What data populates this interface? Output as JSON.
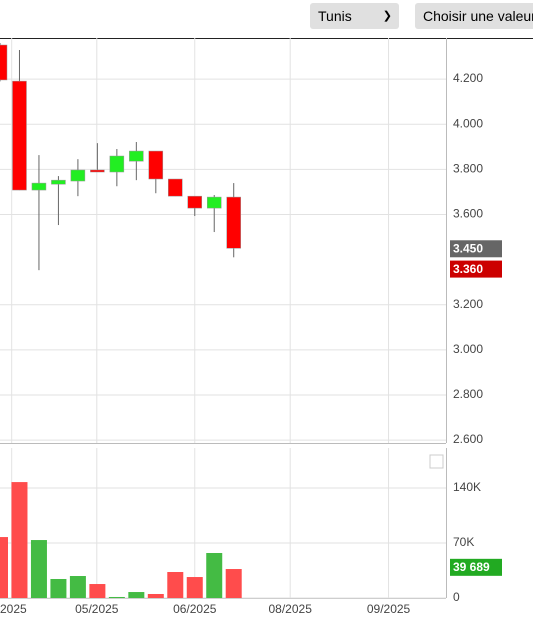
{
  "controls": {
    "exchange": "Tunis",
    "button": "Choisir une valeur"
  },
  "chart_data": [
    {
      "type": "candlestick",
      "x": [
        0,
        1,
        2,
        3,
        4,
        5,
        6,
        7,
        8,
        9,
        10,
        11,
        12
      ],
      "open": [
        4.351,
        4.191,
        3.708,
        3.734,
        3.748,
        3.797,
        3.788,
        3.836,
        3.881,
        3.757,
        3.681,
        3.628,
        3.677
      ],
      "high": [
        4.36,
        4.329,
        3.863,
        3.77,
        3.845,
        3.916,
        3.89,
        3.921,
        3.881,
        3.757,
        3.681,
        3.686,
        3.739
      ],
      "low": [
        4.19,
        3.708,
        3.353,
        3.553,
        3.681,
        3.788,
        3.725,
        3.752,
        3.694,
        3.681,
        3.593,
        3.522,
        3.41
      ],
      "close": [
        4.196,
        3.708,
        3.739,
        3.752,
        3.797,
        3.788,
        3.859,
        3.881,
        3.757,
        3.681,
        3.628,
        3.677,
        3.45
      ],
      "up_color": "#22ee22",
      "down_color": "#ff0000",
      "xlim": [
        0,
        22.9
      ],
      "ylim": [
        2.587,
        4.382
      ],
      "yticks": [
        {
          "value": 2.6,
          "label": "2.600"
        },
        {
          "value": 2.8,
          "label": "2.800"
        },
        {
          "value": 3.0,
          "label": "3.000"
        },
        {
          "value": 3.2,
          "label": "3.200"
        },
        {
          "value": 3.6,
          "label": "3.600"
        },
        {
          "value": 3.8,
          "label": "3.800"
        },
        {
          "value": 4.0,
          "label": "4.000"
        },
        {
          "value": 4.2,
          "label": "4.200"
        }
      ],
      "xticks": [
        {
          "value": 0.6,
          "label": "/2025"
        },
        {
          "value": 4.97,
          "label": "05/2025"
        },
        {
          "value": 10,
          "label": "06/2025"
        },
        {
          "value": 14.9,
          "label": "08/2025"
        },
        {
          "value": 19.95,
          "label": "09/2025"
        }
      ],
      "price_labels": [
        {
          "value": 3.45,
          "label": "3.450",
          "color": "#666666"
        },
        {
          "value": 3.36,
          "label": "3.360",
          "color": "#cc0000"
        }
      ],
      "grid": true
    },
    {
      "type": "bar",
      "x": [
        0,
        1,
        2,
        3,
        4,
        5,
        6,
        7,
        8,
        9,
        10,
        11,
        12
      ],
      "values": [
        77600,
        147600,
        73800,
        24200,
        28000,
        17800,
        1300,
        7600,
        5100,
        33100,
        26700,
        57300,
        36900
      ],
      "colors": [
        "#ff4c4c",
        "#ff4c4c",
        "#44bb44",
        "#44bb44",
        "#44bb44",
        "#ff4c4c",
        "#44bb44",
        "#44bb44",
        "#ff4c4c",
        "#ff4c4c",
        "#ff4c4c",
        "#44bb44",
        "#ff4c4c"
      ],
      "xlim": [
        0,
        22.9
      ],
      "ylim": [
        0,
        191000
      ],
      "yticks": [
        0,
        {
          "value": 70000,
          "label": "70K"
        },
        {
          "value": 140000,
          "label": "140K"
        }
      ],
      "xticks": [
        {
          "value": 0.6,
          "label": "/2025"
        },
        {
          "value": 4.97,
          "label": "05/2025"
        },
        {
          "value": 10,
          "label": "06/2025"
        },
        {
          "value": 14.9,
          "label": "08/2025"
        },
        {
          "value": 19.95,
          "label": "09/2025"
        }
      ],
      "value_marker": {
        "value": 39689,
        "label": "39 689",
        "color": "#22aa22"
      },
      "grid": true
    }
  ]
}
